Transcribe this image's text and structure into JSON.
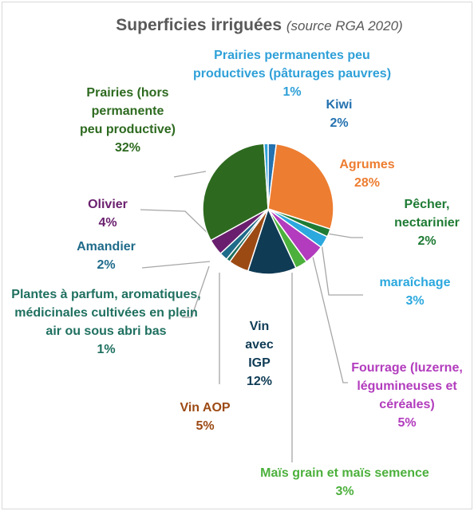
{
  "chart_data": {
    "type": "pie",
    "title": "Superficies irriguées",
    "subtitle": "(source RGA 2020)",
    "categories": [
      "Kiwi",
      "Agrumes",
      "Pêcher, nectarinier",
      "maraîchage",
      "Fourrage (luzerne, légumineuses et céréales)",
      "Maïs grain et maïs semence",
      "Vin avec IGP",
      "Vin AOP",
      "Plantes à parfum, aromatiques, médicinales cultivées en plein air ou sous abri bas",
      "Amandier",
      "Olivier",
      "Prairies (hors permanente peu productive)",
      "Prairies permanentes peu productives (pâturages pauvres)"
    ],
    "values": [
      2,
      28,
      2,
      3,
      5,
      3,
      12,
      5,
      1,
      2,
      4,
      32,
      1
    ],
    "value_labels": [
      "2%",
      "28%",
      "2%",
      "3%",
      "5%",
      "3%",
      "12%",
      "5%",
      "1%",
      "2%",
      "4%",
      "32%",
      "1%"
    ],
    "colors": [
      "#2472b0",
      "#ed7d31",
      "#1e7b34",
      "#2ba8de",
      "#b23cbd",
      "#4cb03c",
      "#0f3b55",
      "#9c4a14",
      "#1f7060",
      "#1f6b8a",
      "#6a1f6e",
      "#2d6a1f",
      "#2fa0d8"
    ]
  }
}
